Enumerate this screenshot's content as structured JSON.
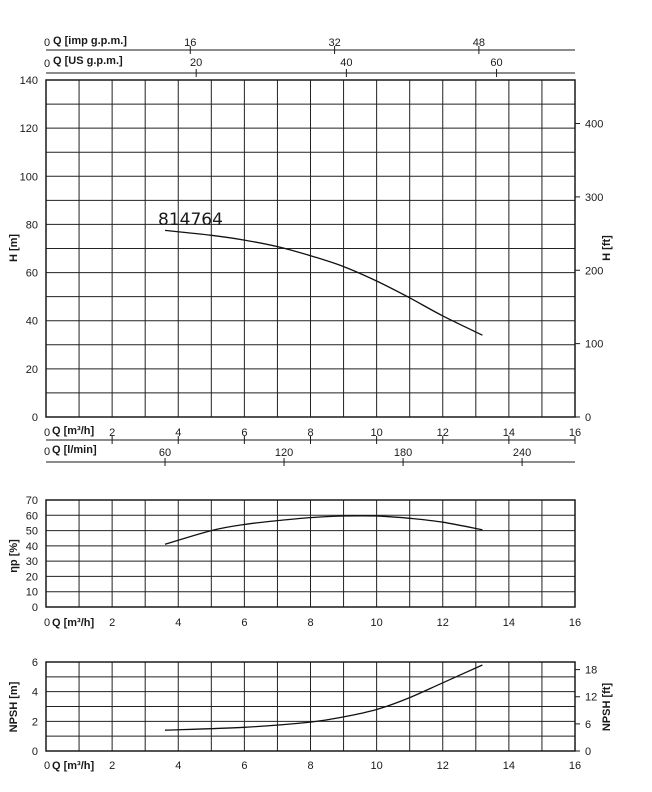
{
  "chart_data": [
    {
      "type": "line",
      "model_label": "814764",
      "ylabel": "H [m]",
      "ylabel_right": "H [ft]",
      "ylim": [
        0,
        140
      ],
      "yticks": [
        "0",
        "20",
        "40",
        "60",
        "80",
        "100",
        "120",
        "140"
      ],
      "yticks_right": [
        "0",
        "100",
        "200",
        "300",
        "400"
      ],
      "xlim": [
        0,
        16
      ],
      "top_axes": [
        {
          "label": "Q [imp g.p.m.]",
          "zero": "0",
          "ticks": [
            "16",
            "32",
            "48"
          ]
        },
        {
          "label": "Q [US g.p.m.]",
          "zero": "0",
          "ticks": [
            "20",
            "40",
            "60"
          ]
        }
      ],
      "bottom_axes": [
        {
          "label": "Q [m³/h]",
          "zero": "0",
          "ticks": [
            "2",
            "4",
            "6",
            "8",
            "10",
            "12",
            "14",
            "16"
          ]
        },
        {
          "label": "Q [l/min]",
          "zero": "0",
          "ticks": [
            "60",
            "120",
            "180",
            "240"
          ]
        }
      ],
      "grid": true,
      "x": [
        3.6,
        5,
        6,
        7,
        8,
        9,
        10,
        11,
        12,
        13.2
      ],
      "series": [
        {
          "values": [
            77.5,
            75.5,
            73.5,
            70.8,
            67,
            62.5,
            56.5,
            49.5,
            42,
            34
          ]
        }
      ]
    },
    {
      "type": "line",
      "ylabel": "ηp [%]",
      "ylim": [
        0,
        70
      ],
      "yticks": [
        "0",
        "10",
        "20",
        "30",
        "40",
        "50",
        "60",
        "70"
      ],
      "xlim": [
        0,
        16
      ],
      "bottom_axes": [
        {
          "label": "Q [m³/h]",
          "zero": "0",
          "ticks": [
            "2",
            "4",
            "6",
            "8",
            "10",
            "12",
            "14",
            "16"
          ]
        }
      ],
      "grid": true,
      "x": [
        3.6,
        5,
        6,
        7,
        8,
        9,
        10,
        11,
        12,
        13.2
      ],
      "series": [
        {
          "values": [
            41,
            50,
            54,
            56.5,
            58.5,
            59.5,
            59.5,
            58,
            55.5,
            50.5
          ]
        }
      ]
    },
    {
      "type": "line",
      "ylabel": "NPSH [m]",
      "ylabel_right": "NPSH [ft]",
      "ylim": [
        0,
        6
      ],
      "yticks": [
        "0",
        "2",
        "4",
        "6"
      ],
      "yticks_right": [
        "0",
        "6",
        "12",
        "18"
      ],
      "xlim": [
        0,
        16
      ],
      "bottom_axes": [
        {
          "label": "Q [m³/h]",
          "zero": "0",
          "ticks": [
            "2",
            "4",
            "6",
            "8",
            "10",
            "12",
            "14",
            "16"
          ]
        }
      ],
      "grid": true,
      "x": [
        3.6,
        6,
        8,
        9,
        10,
        11,
        12,
        13.2
      ],
      "series": [
        {
          "values": [
            1.4,
            1.6,
            1.95,
            2.3,
            2.8,
            3.6,
            4.6,
            5.8
          ]
        }
      ]
    }
  ]
}
